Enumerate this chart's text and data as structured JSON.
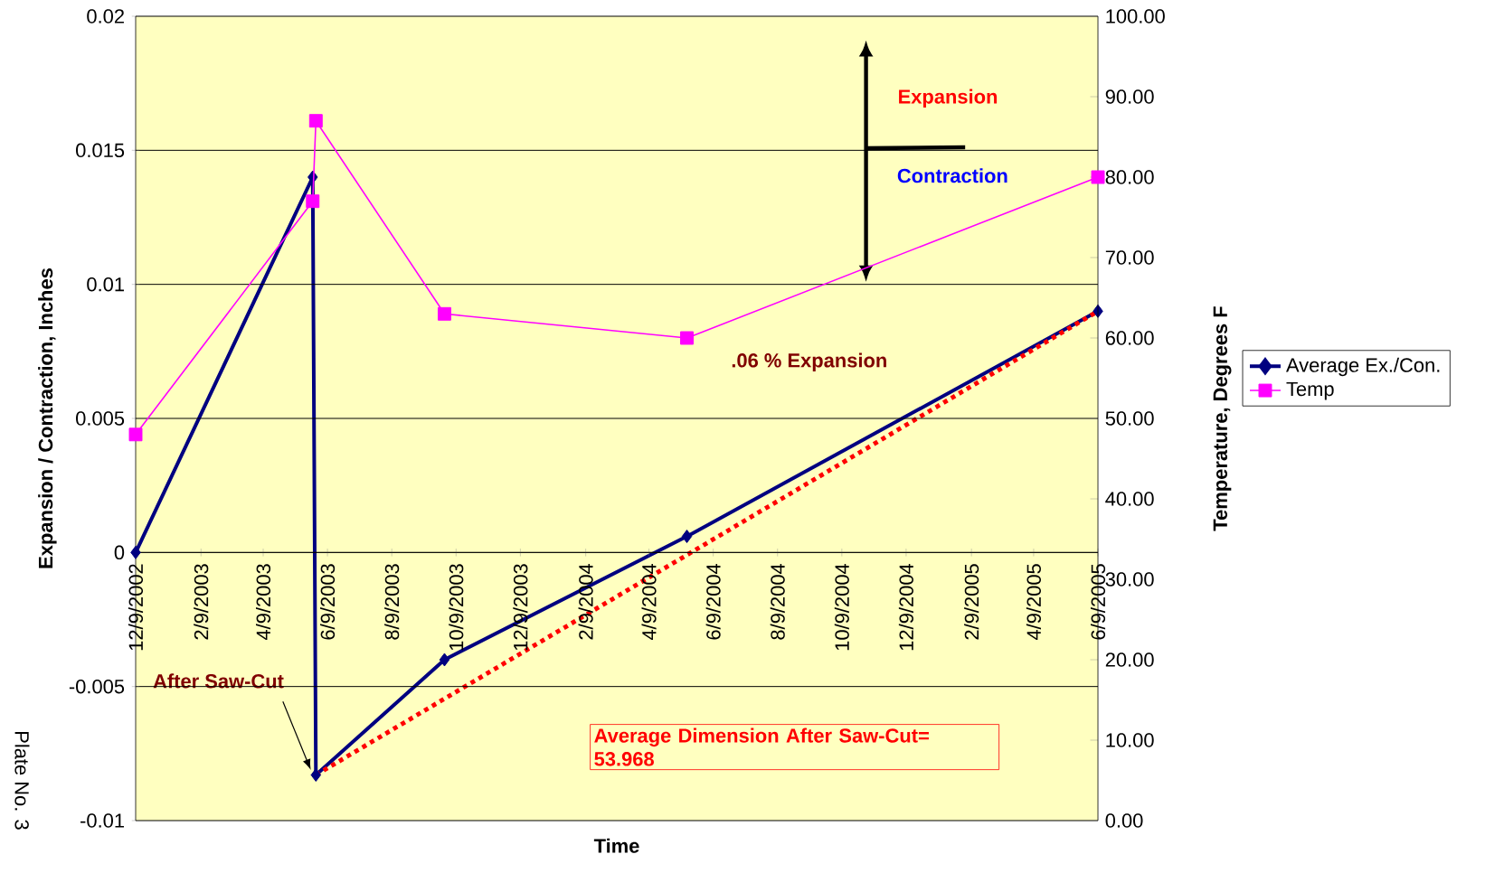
{
  "chart_data": {
    "type": "line",
    "xlabel": "Time",
    "ylabel": "Expansion / Contraction, Inches",
    "y2label": "Temperature, Degrees F",
    "x": [
      "2002-12-09",
      "2003-05-26",
      "2003-05-29",
      "2003-09-28",
      "2004-05-15",
      "2005-06-09"
    ],
    "series": [
      {
        "name": "Average Ex./Con.",
        "color": "#000080",
        "marker": "diamond",
        "values": [
          0,
          0.014,
          -0.0083,
          -0.004,
          0.0006,
          0.009
        ]
      },
      {
        "name": "Temp",
        "color": "#ff00ff",
        "marker": "square",
        "axis": "y2",
        "values": [
          48,
          77,
          87,
          63,
          60,
          80
        ]
      },
      {
        "type": "line",
        "color": "#ff0000",
        "marker": "none",
        "line_style": "dotted",
        "x": [
          "2003-05-29",
          "2005-06-09"
        ],
        "values": [
          -0.0083,
          0.009
        ]
      }
    ],
    "xlim": [
      "2002-12-09",
      "2005-06-09"
    ],
    "xticks": [
      {
        "value": "2002-12-09",
        "label": "12/9/2002"
      },
      {
        "value": "2003-02-09",
        "label": "2/9/2003"
      },
      {
        "value": "2003-04-09",
        "label": "4/9/2003"
      },
      {
        "value": "2003-06-09",
        "label": "6/9/2003"
      },
      {
        "value": "2003-08-09",
        "label": "8/9/2003"
      },
      {
        "value": "2003-10-09",
        "label": "10/9/2003"
      },
      {
        "value": "2003-12-09",
        "label": "12/9/2003"
      },
      {
        "value": "2004-02-09",
        "label": "2/9/2004"
      },
      {
        "value": "2004-04-09",
        "label": "4/9/2004"
      },
      {
        "value": "2004-06-09",
        "label": "6/9/2004"
      },
      {
        "value": "2004-08-09",
        "label": "8/9/2004"
      },
      {
        "value": "2004-10-09",
        "label": "10/9/2004"
      },
      {
        "value": "2004-12-09",
        "label": "12/9/2004"
      },
      {
        "value": "2005-02-09",
        "label": "2/9/2005"
      },
      {
        "value": "2005-04-09",
        "label": "4/9/2005"
      },
      {
        "value": "2005-06-09",
        "label": "6/9/2005"
      }
    ],
    "ylim": [
      -0.01,
      0.02
    ],
    "yticks": [
      -0.01,
      -0.005,
      0,
      0.005,
      0.01,
      0.015,
      0.02
    ],
    "y2lim": [
      0,
      100
    ],
    "y2ticks": [
      {
        "value": 0,
        "label": "0.00"
      },
      {
        "value": 10,
        "label": "10.00"
      },
      {
        "value": 20,
        "label": "20.00"
      },
      {
        "value": 30,
        "label": "30.00"
      },
      {
        "value": 40,
        "label": "40.00"
      },
      {
        "value": 50,
        "label": "50.00"
      },
      {
        "value": 60,
        "label": "60.00"
      },
      {
        "value": 70,
        "label": "70.00"
      },
      {
        "value": 80,
        "label": "80.00"
      },
      {
        "value": 90,
        "label": "90.00"
      },
      {
        "value": 100,
        "label": "100.00"
      }
    ],
    "grid": "y",
    "legend": "right",
    "annotations": [
      "After Saw-Cut",
      ".06 % Expansion",
      "Expansion",
      "Contraction",
      "Average Dimension After Saw-Cut= 53.968",
      "Plate No. 3"
    ]
  }
}
